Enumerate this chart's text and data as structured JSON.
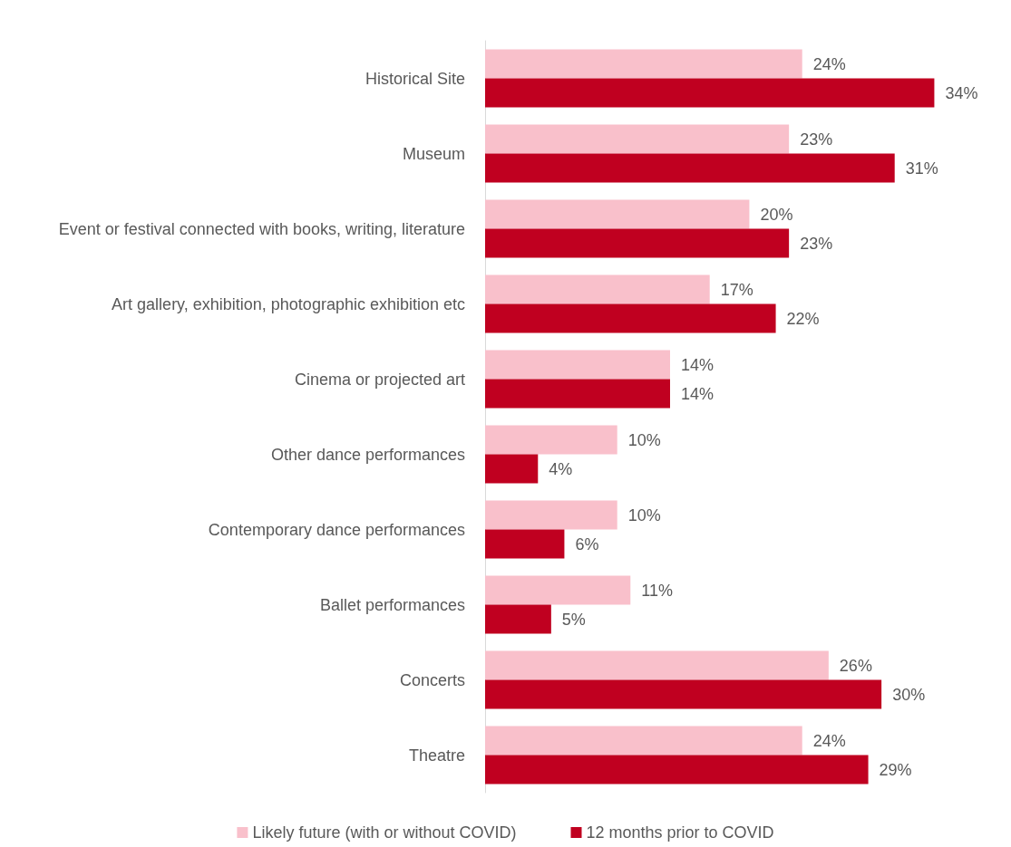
{
  "chart_data": {
    "type": "bar",
    "orientation": "horizontal",
    "categories": [
      "Historical Site",
      "Museum",
      "Event or festival connected with books, writing, literature",
      "Art gallery, exhibition, photographic exhibition etc",
      "Cinema or projected art",
      "Other dance performances",
      "Contemporary dance performances",
      "Ballet performances",
      "Concerts",
      "Theatre"
    ],
    "series": [
      {
        "name": "Likely future (with or without COVID)",
        "color": "#f9c0cb",
        "values": [
          24,
          23,
          20,
          17,
          14,
          10,
          10,
          11,
          26,
          24
        ],
        "value_labels": [
          "24%",
          "23%",
          "20%",
          "17%",
          "14%",
          "10%",
          "10%",
          "11%",
          "26%",
          "24%"
        ]
      },
      {
        "name": "12 months prior to COVID",
        "color": "#c00020",
        "values": [
          34,
          31,
          23,
          22,
          14,
          4,
          6,
          5,
          30,
          29
        ],
        "value_labels": [
          "34%",
          "31%",
          "23%",
          "22%",
          "14%",
          "4%",
          "6%",
          "5%",
          "30%",
          "29%"
        ]
      }
    ],
    "grid": false,
    "legend": "bottom",
    "tick_labels": "y"
  }
}
